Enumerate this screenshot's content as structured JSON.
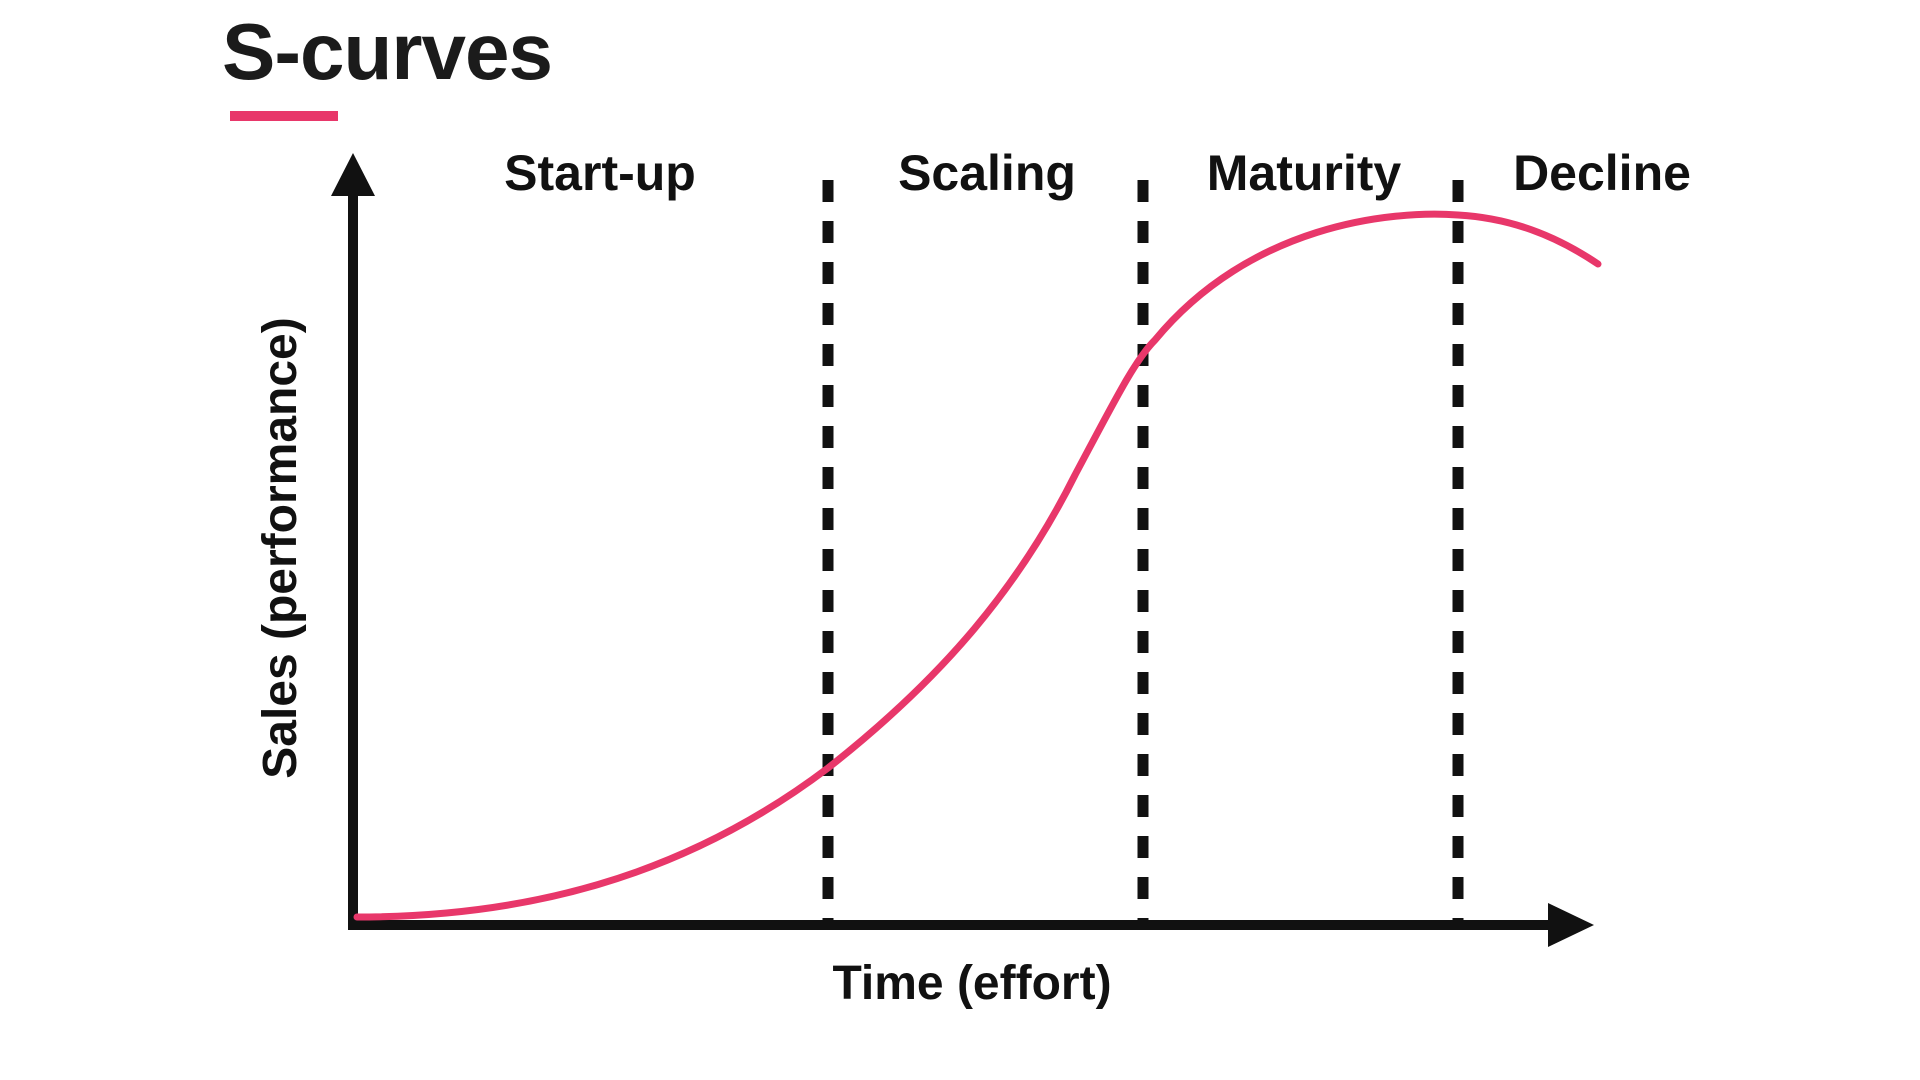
{
  "title": "S-curves",
  "colors": {
    "accent": "#e8376a",
    "ink": "#111111"
  },
  "axes": {
    "x_label": "Time (effort)",
    "y_label": "Sales (performance)"
  },
  "stages": [
    {
      "label": "Start-up"
    },
    {
      "label": "Scaling"
    },
    {
      "label": "Maturity"
    },
    {
      "label": "Decline"
    }
  ]
}
